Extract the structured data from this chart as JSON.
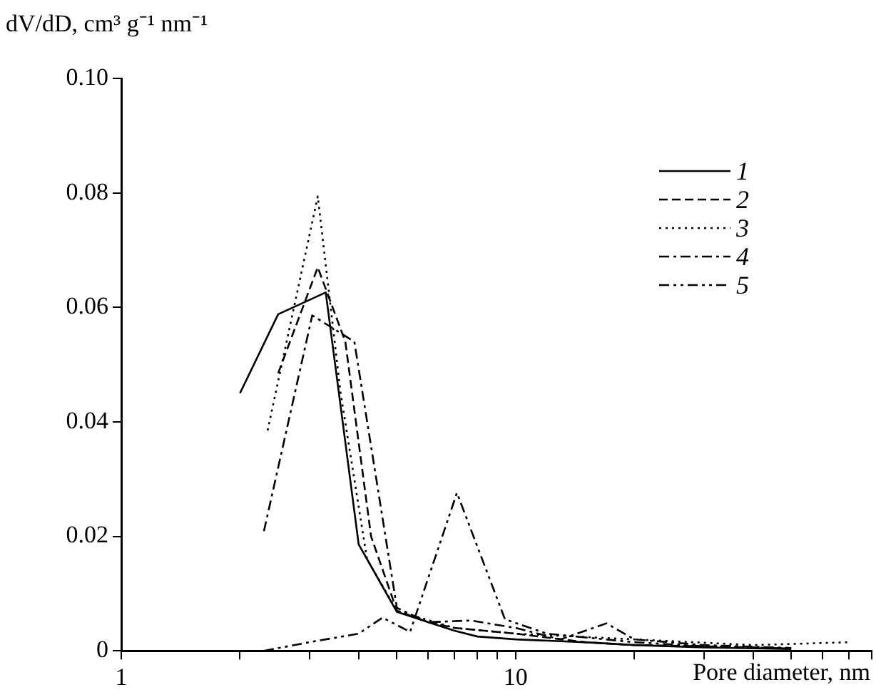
{
  "chart_data": {
    "type": "line",
    "xlabel": "Pore diameter, nm",
    "ylabel": "dV/dD, cm³ g⁻¹ nm⁻¹",
    "log": "x",
    "xlim": [
      1,
      80
    ],
    "ylim": [
      0,
      0.1
    ],
    "xticks": [
      1,
      {
        "value": 2,
        "label": null
      },
      {
        "value": 3,
        "label": null
      },
      {
        "value": 4,
        "label": null
      },
      {
        "value": 5,
        "label": null
      },
      {
        "value": 6,
        "label": null
      },
      {
        "value": 7,
        "label": null
      },
      {
        "value": 8,
        "label": null
      },
      {
        "value": 9,
        "label": null
      },
      10,
      {
        "value": 20,
        "label": null
      },
      {
        "value": 30,
        "label": null
      },
      {
        "value": 40,
        "label": null
      },
      {
        "value": 50,
        "label": null
      },
      {
        "value": 60,
        "label": null
      },
      {
        "value": 70,
        "label": null
      },
      {
        "value": 80,
        "label": null
      }
    ],
    "yticks": [
      0,
      0.02,
      0.04,
      0.06,
      0.08,
      {
        "value": 0.1,
        "label": "0.10"
      }
    ],
    "grid": false,
    "legend": "top right",
    "marker": "none",
    "series": [
      {
        "name": "1",
        "color": "#000000",
        "line_style": "solid",
        "x": [
          2,
          2.5,
          3.3,
          4,
          5,
          6,
          7,
          8,
          10,
          15,
          20,
          30,
          50
        ],
        "values": [
          0.045,
          0.0588,
          0.0626,
          0.0186,
          0.0068,
          0.005,
          0.0035,
          0.0025,
          0.002,
          0.0015,
          0.001,
          0.0006,
          0.0003
        ]
      },
      {
        "name": "2",
        "color": "#000000",
        "line_style": "dashed",
        "x": [
          2.5,
          3.15,
          3.7,
          4.3,
          5,
          6,
          7,
          10,
          15,
          20,
          30,
          50
        ],
        "values": [
          0.0485,
          0.067,
          0.054,
          0.02,
          0.007,
          0.005,
          0.004,
          0.003,
          0.0015,
          0.001,
          0.0008,
          0.0004
        ]
      },
      {
        "name": "3",
        "color": "#000000",
        "line_style": "dotted",
        "x": [
          2.35,
          3.15,
          3.6,
          4.2,
          5,
          7,
          10,
          20,
          40,
          70
        ],
        "values": [
          0.0385,
          0.0794,
          0.045,
          0.016,
          0.007,
          0.004,
          0.003,
          0.002,
          0.001,
          0.0015
        ]
      },
      {
        "name": "4",
        "color": "#000000",
        "line_style": "dashdot",
        "x": [
          2.3,
          3.05,
          3.9,
          5,
          6,
          7.7,
          10,
          13,
          17,
          20,
          30,
          50
        ],
        "values": [
          0.0209,
          0.0586,
          0.054,
          0.0075,
          0.005,
          0.0053,
          0.004,
          0.002,
          0.0048,
          0.002,
          0.001,
          0.0005
        ]
      },
      {
        "name": "5",
        "color": "#000000",
        "line_style": "dashdotdot",
        "x": [
          2.3,
          3,
          4,
          4.6,
          5.4,
          7.1,
          9.4,
          12,
          20,
          30,
          50
        ],
        "values": [
          0,
          0.0015,
          0.003,
          0.0058,
          0.0033,
          0.0276,
          0.0055,
          0.003,
          0.0015,
          0.0008,
          0.0004
        ]
      }
    ]
  }
}
